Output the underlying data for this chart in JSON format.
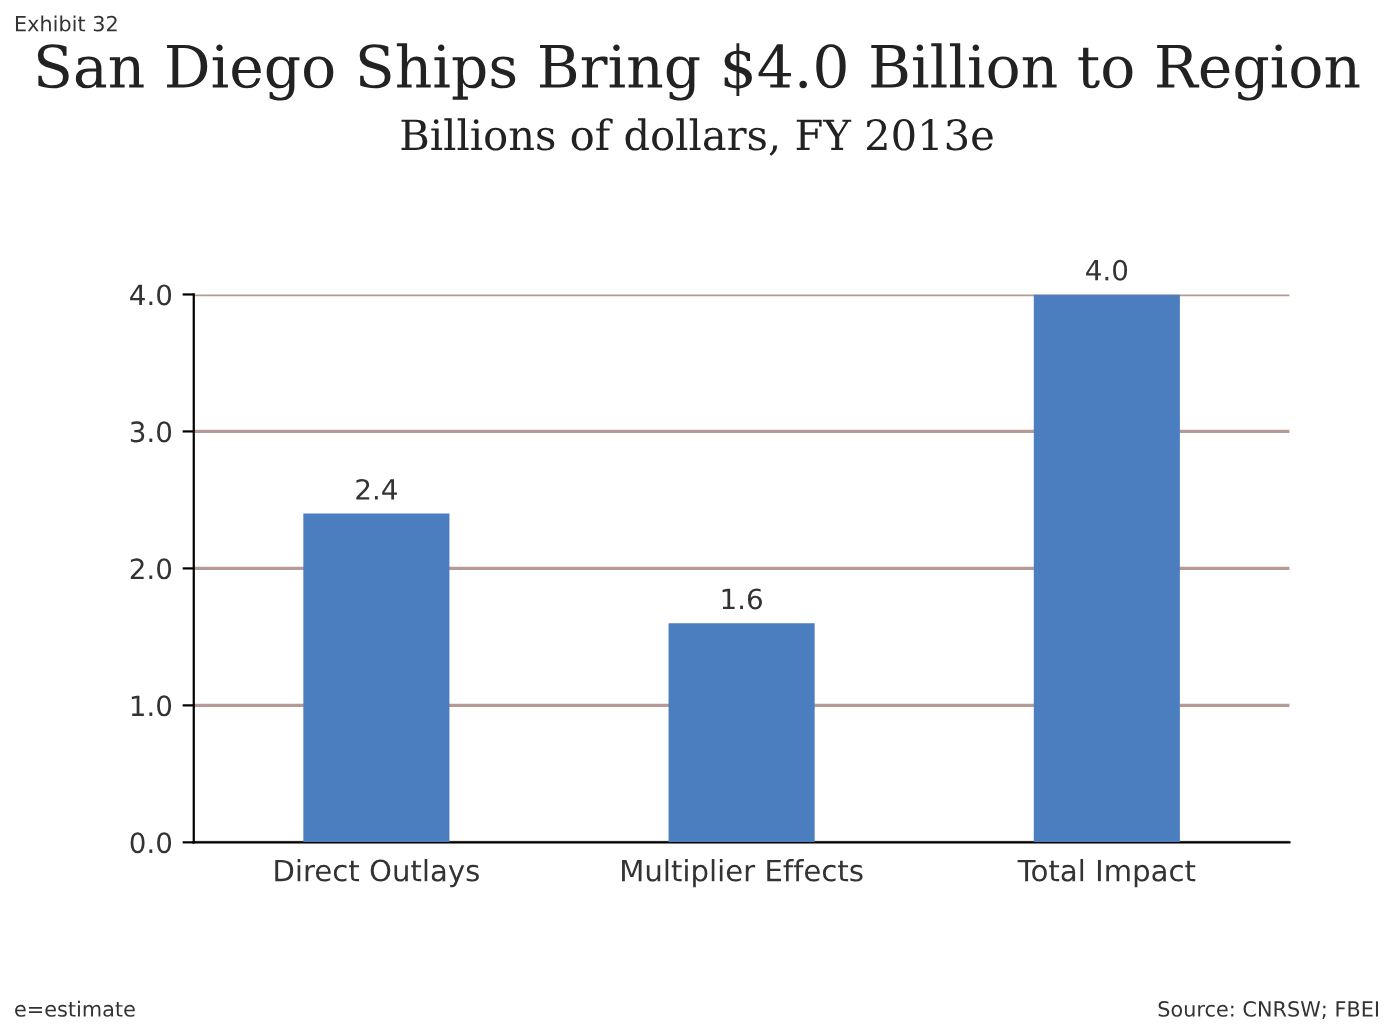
{
  "chart_data": {
    "type": "bar",
    "title": "San Diego Ships Bring $4.0 Billion to Region",
    "subtitle": "Billions of dollars, FY 2013e",
    "categories": [
      "Direct Outlays",
      "Multiplier Effects",
      "Total Impact"
    ],
    "values": [
      2.4,
      1.6,
      4.0
    ],
    "value_labels": [
      "2.4",
      "1.6",
      "4.0"
    ],
    "color": "#4a7ebf",
    "ylim": [
      0,
      4
    ],
    "yticks": [
      {
        "value": 0,
        "label": "0.0"
      },
      {
        "value": 1,
        "label": "1.0"
      },
      {
        "value": 2,
        "label": "2.0"
      },
      {
        "value": 3,
        "label": "3.0"
      },
      {
        "value": 4,
        "label": "4.0"
      }
    ],
    "grid": "y",
    "annotations": [
      "Exhibit 32",
      "e=estimate",
      "Source: CNRSW; FBEI"
    ]
  }
}
